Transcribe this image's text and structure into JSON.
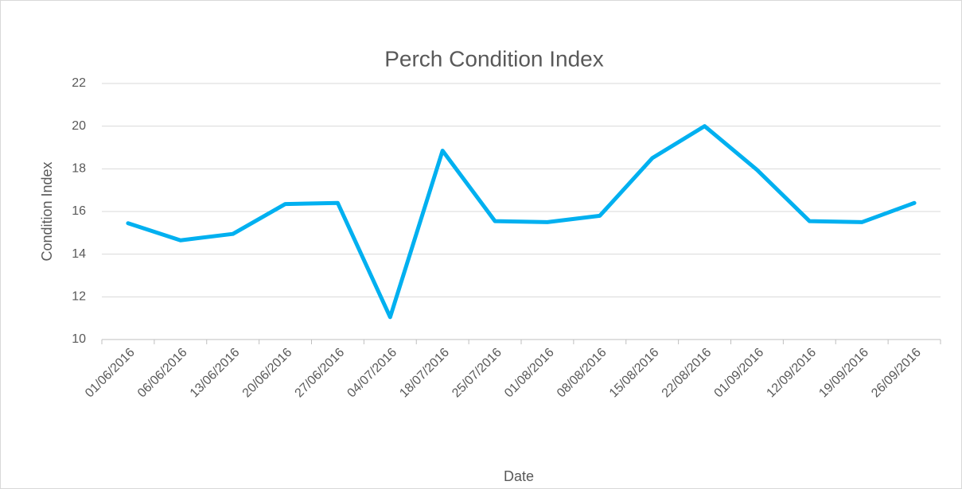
{
  "chart_data": {
    "type": "line",
    "title": "Perch Condition Index",
    "x_label": "Date",
    "y_label": "Condition Index",
    "categories": [
      "01/06/2016",
      "06/06/2016",
      "13/06/2016",
      "20/06/2016",
      "27/06/2016",
      "04/07/2016",
      "18/07/2016",
      "25/07/2016",
      "01/08/2016",
      "08/08/2016",
      "15/08/2016",
      "22/08/2016",
      "01/09/2016",
      "12/09/2016",
      "19/09/2016",
      "26/09/2016"
    ],
    "series": [
      {
        "name": "Condition Index",
        "color": "#00b0f0",
        "values": [
          15.45,
          14.65,
          14.95,
          16.35,
          16.4,
          11.05,
          18.85,
          15.55,
          15.5,
          15.8,
          18.5,
          20.0,
          17.95,
          15.55,
          15.5,
          16.4
        ]
      }
    ],
    "ylim": [
      10,
      22
    ],
    "yticks": [
      10,
      12,
      14,
      16,
      18,
      20,
      22
    ],
    "grid": true
  }
}
